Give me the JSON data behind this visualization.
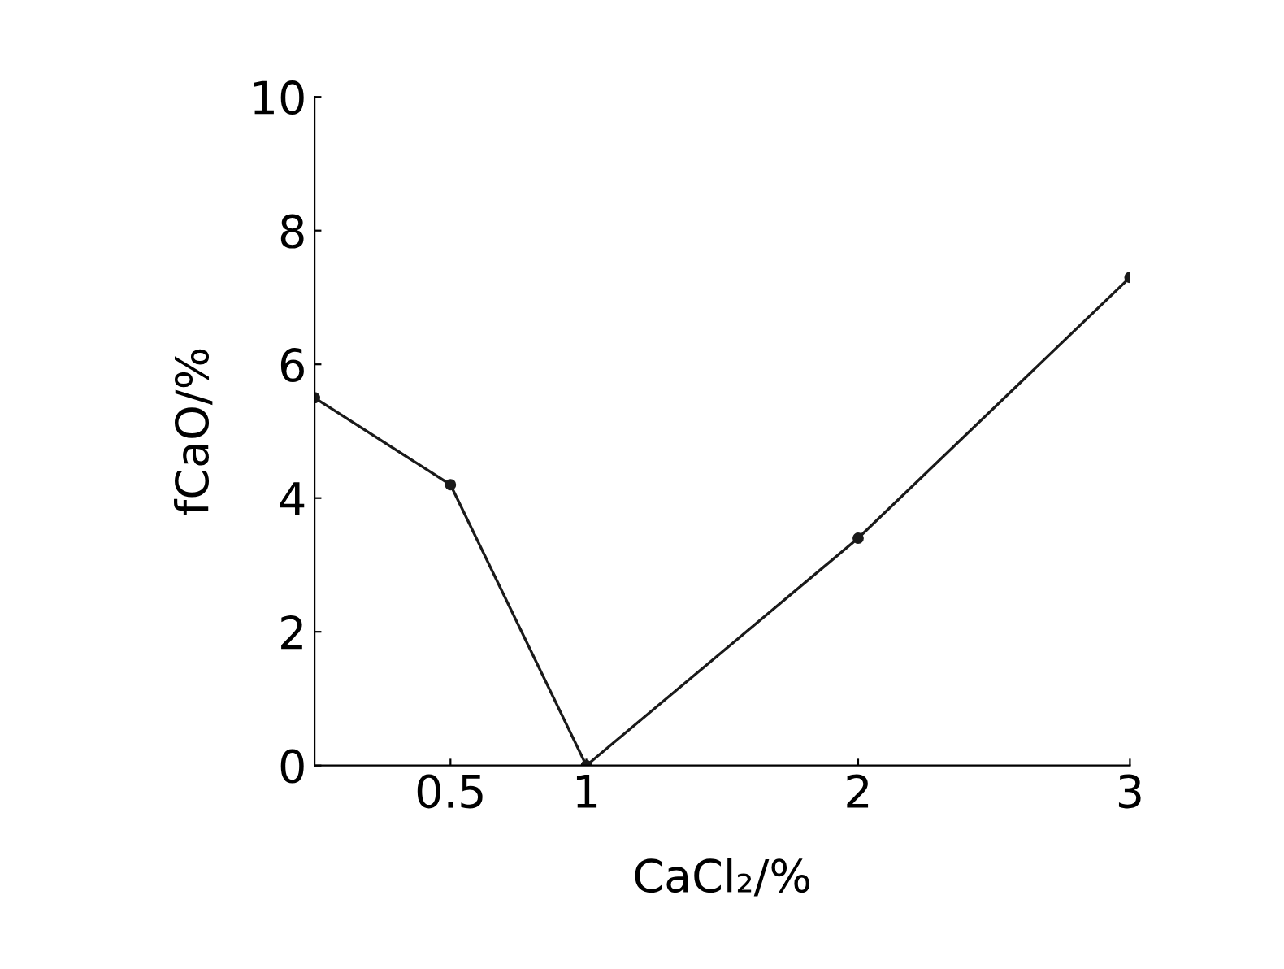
{
  "chart_data": {
    "type": "line",
    "xlabel": "CaCl₂/%",
    "ylabel": "fCaO/%",
    "x": [
      0,
      0.5,
      1,
      2,
      3
    ],
    "series": [
      {
        "color": "#1a1a1a",
        "values": [
          5.5,
          4.2,
          0,
          3.4,
          7.3
        ]
      }
    ],
    "xlim": [
      0,
      3
    ],
    "ylim": [
      0,
      10
    ],
    "xticks": [
      0.5,
      1,
      2,
      3
    ],
    "yticks": [
      0,
      2,
      4,
      6,
      8,
      10
    ],
    "marker": "circle",
    "line_style": "solid",
    "grid": false,
    "legend": false
  }
}
